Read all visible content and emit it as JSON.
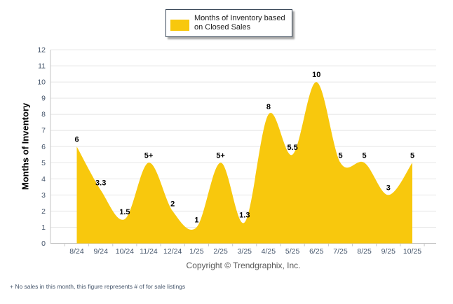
{
  "legend": {
    "label": "Months of Inventory based on Closed Sales",
    "swatch_color": "#F8C80D"
  },
  "chart_data": {
    "type": "area",
    "title": "",
    "categories": [
      "8/24",
      "9/24",
      "10/24",
      "11/24",
      "12/24",
      "1/25",
      "2/25",
      "3/25",
      "4/25",
      "5/25",
      "6/25",
      "7/25",
      "8/25",
      "9/25",
      "10/25"
    ],
    "values": [
      6,
      3.3,
      1.5,
      5,
      2,
      1,
      5,
      1.3,
      8,
      5.5,
      10,
      5,
      5,
      3,
      5
    ],
    "point_labels": [
      "6",
      "3.3",
      "1.5",
      "5+",
      "2",
      "1",
      "5+",
      "1.3",
      "8",
      "5.5",
      "10",
      "5",
      "5",
      "3",
      "5"
    ],
    "series_name": "Months of Inventory based on Closed Sales",
    "xlabel": "",
    "ylabel": "Months of Inventory",
    "ylim": [
      0,
      12
    ],
    "ytick_step": 1,
    "grid": true,
    "legend_position": "top-center",
    "fill_color": "#F8C80D",
    "grid_color": "#e8e8e8",
    "axis_color": "#c6c6c6",
    "tick_label_color": "#44546a",
    "point_label_color": "#000000"
  },
  "footer": {
    "copyright": "Copyright © Trendgraphix, Inc.",
    "footnote": "+ No sales in this month, this figure represents # of for sale listings"
  }
}
